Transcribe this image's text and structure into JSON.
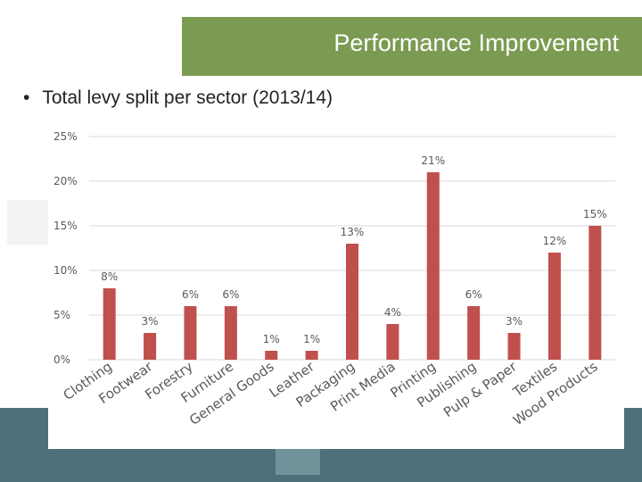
{
  "slide": {
    "title": "Performance Improvement",
    "bullet_marker": "•",
    "bullet_text": "Total levy split per sector (2013/14)"
  },
  "colors": {
    "title_bar": "#7c9b52",
    "bar": "#c0504d",
    "gridline": "#d9d9d9",
    "bottom_band": "#4f707b"
  },
  "chart_data": {
    "type": "bar",
    "title": "",
    "xlabel": "",
    "ylabel": "",
    "ylim": [
      0,
      25
    ],
    "yticks": [
      0,
      5,
      10,
      15,
      20,
      25
    ],
    "ytick_labels": [
      "0%",
      "5%",
      "10%",
      "15%",
      "20%",
      "25%"
    ],
    "grid": true,
    "categories": [
      "Clothing",
      "Footwear",
      "Forestry",
      "Furniture",
      "General Goods",
      "Leather",
      "Packaging",
      "Print Media",
      "Printing",
      "Publishing",
      "Pulp & Paper",
      "Textiles",
      "Wood Products"
    ],
    "values": [
      8,
      3,
      6,
      6,
      1,
      1,
      13,
      4,
      21,
      6,
      3,
      12,
      15
    ],
    "data_labels": [
      "8%",
      "3%",
      "6%",
      "6%",
      "1%",
      "1%",
      "13%",
      "4%",
      "21%",
      "6%",
      "3%",
      "12%",
      "15%"
    ]
  }
}
